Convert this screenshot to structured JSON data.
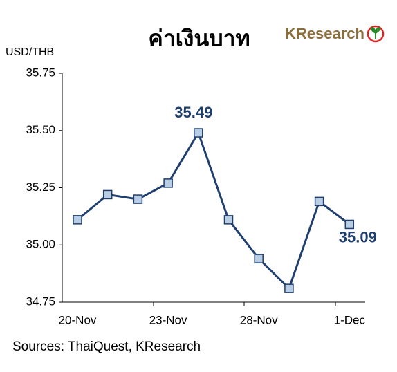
{
  "chart_data": {
    "type": "line",
    "title": "ค่าเงินบาท",
    "logo": "KResearch",
    "ylabel": "USD/THB",
    "source": "Sources: ThaiQuest, KResearch",
    "categories": [
      "20-Nov",
      null,
      null,
      "23-Nov",
      null,
      null,
      "28-Nov",
      null,
      null,
      "1-Dec"
    ],
    "series": [
      {
        "name": "USD/THB",
        "color": "#1f3f6e",
        "marker_color": "#b8cce4",
        "values": [
          35.11,
          35.22,
          35.2,
          35.27,
          35.49,
          35.11,
          34.94,
          34.81,
          35.19,
          35.09
        ],
        "value_labels": [
          null,
          null,
          null,
          null,
          "35.49",
          null,
          null,
          null,
          null,
          "35.09"
        ]
      }
    ],
    "ylim": [
      34.75,
      35.75
    ],
    "yticks": [
      {
        "value": 34.75,
        "label": "34.75"
      },
      {
        "value": 35.0,
        "label": "35.00"
      },
      {
        "value": 35.25,
        "label": "35.25"
      },
      {
        "value": 35.5,
        "label": "35.50"
      },
      {
        "value": 35.75,
        "label": "35.75"
      }
    ],
    "grid": false
  }
}
